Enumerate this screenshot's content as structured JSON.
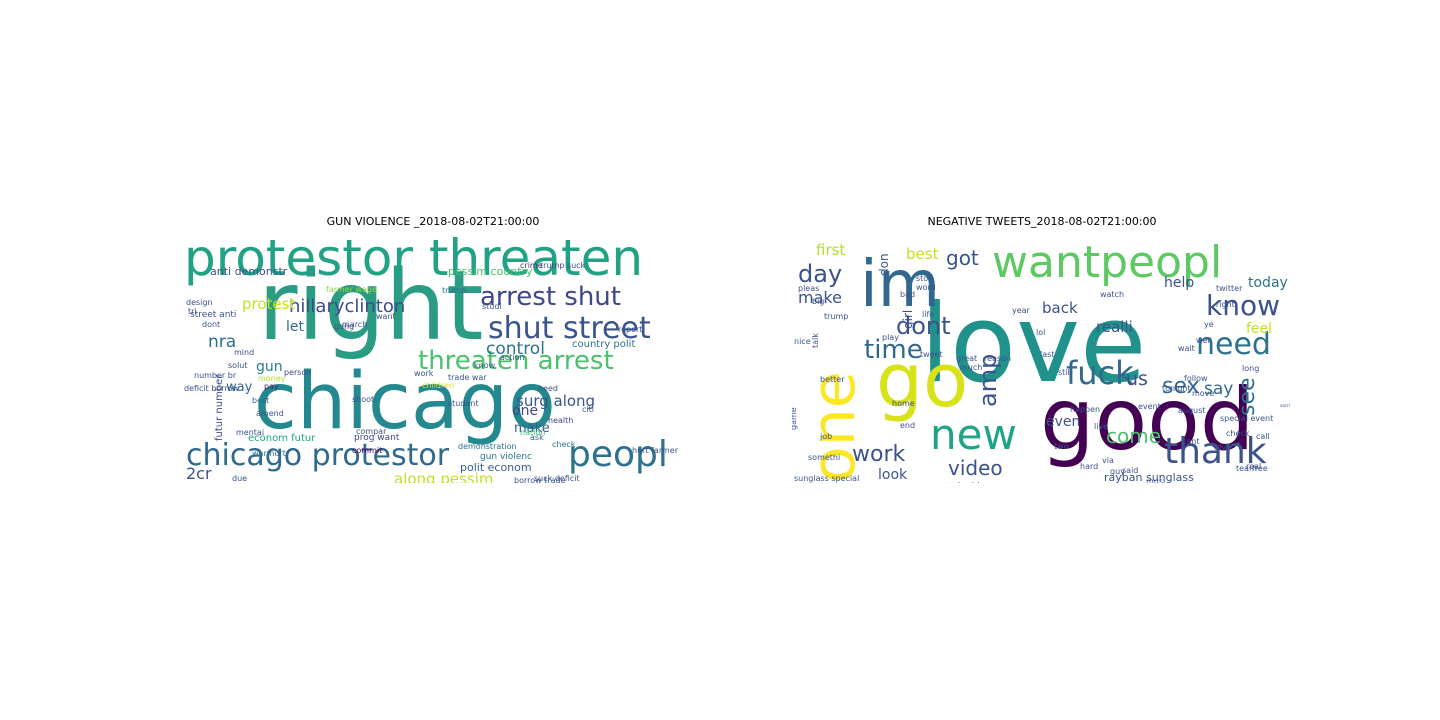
{
  "figure": {
    "panels": [
      {
        "title": "GUN VIOLENCE _2018-08-02T21:00:00",
        "words": [
          {
            "text": "right",
            "size": 96,
            "color": "#2a9c83"
          },
          {
            "text": "chicago",
            "size": 78,
            "color": "#23898e"
          },
          {
            "text": "protestor threaten",
            "size": 50,
            "color": "#22a284"
          },
          {
            "text": "peopl",
            "size": 36,
            "color": "#2c718e"
          },
          {
            "text": "chicago protestor",
            "size": 30,
            "color": "#31688e"
          },
          {
            "text": "shut street",
            "size": 30,
            "color": "#3a548c"
          },
          {
            "text": "arrest shut",
            "size": 26,
            "color": "#3f4788"
          },
          {
            "text": "threaten arrest",
            "size": 26,
            "color": "#4ac16d"
          },
          {
            "text": "hillaryclinton",
            "size": 18,
            "color": "#3e4a89"
          },
          {
            "text": "control",
            "size": 17,
            "color": "#2c728e"
          },
          {
            "text": "2cr",
            "size": 16,
            "color": "#3b528b"
          },
          {
            "text": "surg along",
            "size": 15,
            "color": "#3a548c"
          },
          {
            "text": "along pessim",
            "size": 15,
            "color": "#c2df23"
          },
          {
            "text": "protest",
            "size": 15,
            "color": "#c8e020"
          },
          {
            "text": "nra",
            "size": 17,
            "color": "#2d708e"
          },
          {
            "text": "gun",
            "size": 14,
            "color": "#287d8e"
          },
          {
            "text": "let",
            "size": 14,
            "color": "#2f6c8e"
          },
          {
            "text": "one",
            "size": 14,
            "color": "#3f4788"
          },
          {
            "text": "make",
            "size": 13,
            "color": "#355f8d"
          },
          {
            "text": "way",
            "size": 13,
            "color": "#31688e"
          },
          {
            "text": "anti demonstr",
            "size": 11,
            "color": "#3b528b"
          },
          {
            "text": "pessim country",
            "size": 11,
            "color": "#48c16e"
          },
          {
            "text": "polit econom",
            "size": 11,
            "color": "#355f8d"
          },
          {
            "text": "econom futur",
            "size": 10,
            "color": "#20a486"
          },
          {
            "text": "country polit",
            "size": 10,
            "color": "#2c728e"
          },
          {
            "text": "futur number",
            "size": 10,
            "color": "#3e4c8a"
          },
          {
            "text": "street anti",
            "size": 9,
            "color": "#3b528b"
          },
          {
            "text": "gun violenc",
            "size": 9,
            "color": "#2a788e"
          },
          {
            "text": "prog want",
            "size": 9,
            "color": "#3f4788"
          },
          {
            "text": "crime",
            "size": 8,
            "color": "#472d7b"
          },
          {
            "text": "trump suck",
            "size": 8,
            "color": "#3e4a89"
          },
          {
            "text": "farmer wage",
            "size": 8,
            "color": "#8fd744"
          },
          {
            "text": "money",
            "size": 8,
            "color": "#b5de2b"
          },
          {
            "text": "children",
            "size": 8,
            "color": "#dde318"
          },
          {
            "text": "student",
            "size": 8,
            "color": "#3b528b"
          },
          {
            "text": "demonstration",
            "size": 8,
            "color": "#2c728e"
          },
          {
            "text": "health",
            "size": 8,
            "color": "#3e4a89"
          },
          {
            "text": "citi",
            "size": 8,
            "color": "#355f8d"
          },
          {
            "text": "nation",
            "size": 8,
            "color": "#35b779"
          },
          {
            "text": "ask",
            "size": 8,
            "color": "#31688e"
          },
          {
            "text": "check",
            "size": 8,
            "color": "#2a788e"
          },
          {
            "text": "commit",
            "size": 8,
            "color": "#440154"
          },
          {
            "text": "war hurt",
            "size": 8,
            "color": "#2c728e"
          },
          {
            "text": "mind",
            "size": 8,
            "color": "#3e4a89"
          },
          {
            "text": "person",
            "size": 8,
            "color": "#3e4a89"
          },
          {
            "text": "shoot",
            "size": 8,
            "color": "#3b528b"
          },
          {
            "text": "best",
            "size": 8,
            "color": "#31688e"
          },
          {
            "text": "pay",
            "size": 8,
            "color": "#482475"
          },
          {
            "text": "march",
            "size": 8,
            "color": "#3b528b"
          },
          {
            "text": "gang",
            "size": 8,
            "color": "#3b528b"
          },
          {
            "text": "design",
            "size": 8,
            "color": "#3b528b"
          },
          {
            "text": "trump",
            "size": 8,
            "color": "#31688e"
          },
          {
            "text": "want",
            "size": 8,
            "color": "#3b528b"
          },
          {
            "text": "know",
            "size": 8,
            "color": "#3b528b"
          },
          {
            "text": "dont",
            "size": 8,
            "color": "#3b528b"
          },
          {
            "text": "need",
            "size": 8,
            "color": "#3b528b"
          },
          {
            "text": "suck deficit",
            "size": 8,
            "color": "#3b528b"
          },
          {
            "text": "borrow trade",
            "size": 8,
            "color": "#3b528b"
          },
          {
            "text": "trade war",
            "size": 8,
            "color": "#3b528b"
          },
          {
            "text": "report",
            "size": 8,
            "color": "#3b528b"
          },
          {
            "text": "deficit borrow",
            "size": 8,
            "color": "#3b528b"
          },
          {
            "text": "hurt farmer",
            "size": 8,
            "color": "#3b528b"
          },
          {
            "text": "mentai",
            "size": 8,
            "color": "#3b528b"
          },
          {
            "text": "compar",
            "size": 8,
            "color": "#3b528b"
          },
          {
            "text": "solut",
            "size": 8,
            "color": "#3b528b"
          },
          {
            "text": "action",
            "size": 8,
            "color": "#3b528b"
          },
          {
            "text": "amend",
            "size": 8,
            "color": "#3b528b"
          },
          {
            "text": "due",
            "size": 8,
            "color": "#3b528b"
          },
          {
            "text": "work",
            "size": 8,
            "color": "#3b528b"
          },
          {
            "text": "studi",
            "size": 8,
            "color": "#3b528b"
          },
          {
            "text": "number br",
            "size": 8,
            "color": "#3b528b"
          },
          {
            "text": "tri",
            "size": 8,
            "color": "#3b528b"
          }
        ]
      },
      {
        "title": "NEGATIVE TWEETS_2018-08-02T21:00:00",
        "words": [
          {
            "text": "love",
            "size": 108,
            "color": "#21918c"
          },
          {
            "text": "good",
            "size": 86,
            "color": "#440154"
          },
          {
            "text": "go",
            "size": 74,
            "color": "#d8e219"
          },
          {
            "text": "im",
            "size": 64,
            "color": "#31688e"
          },
          {
            "text": "one",
            "size": 60,
            "color": "#fde725"
          },
          {
            "text": "wantpeopl",
            "size": 44,
            "color": "#5ec962"
          },
          {
            "text": "new",
            "size": 42,
            "color": "#20a486"
          },
          {
            "text": "thank",
            "size": 36,
            "color": "#3b528b"
          },
          {
            "text": "fuck",
            "size": 32,
            "color": "#31688e"
          },
          {
            "text": "need",
            "size": 30,
            "color": "#2c728e"
          },
          {
            "text": "know",
            "size": 28,
            "color": "#3b528b"
          },
          {
            "text": "time",
            "size": 26,
            "color": "#31688e"
          },
          {
            "text": "dont",
            "size": 24,
            "color": "#3b528b"
          },
          {
            "text": "day",
            "size": 24,
            "color": "#3b528b"
          },
          {
            "text": "amp",
            "size": 24,
            "color": "#3b528b"
          },
          {
            "text": "sex",
            "size": 22,
            "color": "#31688e"
          },
          {
            "text": "see",
            "size": 22,
            "color": "#2c728e"
          },
          {
            "text": "work",
            "size": 22,
            "color": "#3b528b"
          },
          {
            "text": "come",
            "size": 20,
            "color": "#4ac16d"
          },
          {
            "text": "got",
            "size": 20,
            "color": "#3b528b"
          },
          {
            "text": "video",
            "size": 20,
            "color": "#3b528b"
          },
          {
            "text": "us",
            "size": 19,
            "color": "#3b528b"
          },
          {
            "text": "say",
            "size": 17,
            "color": "#31688e"
          },
          {
            "text": "make",
            "size": 16,
            "color": "#3b528b"
          },
          {
            "text": "first",
            "size": 15,
            "color": "#b5de2b"
          },
          {
            "text": "best",
            "size": 15,
            "color": "#c8e020"
          },
          {
            "text": "realli",
            "size": 15,
            "color": "#3b528b"
          },
          {
            "text": "back",
            "size": 15,
            "color": "#3b528b"
          },
          {
            "text": "help",
            "size": 14,
            "color": "#3b528b"
          },
          {
            "text": "today",
            "size": 14,
            "color": "#2c728e"
          },
          {
            "text": "feel",
            "size": 14,
            "color": "#c8e020"
          },
          {
            "text": "look",
            "size": 14,
            "color": "#3b528b"
          },
          {
            "text": "even",
            "size": 14,
            "color": "#3b528b"
          },
          {
            "text": "girl",
            "size": 12,
            "color": "#3b528b"
          },
          {
            "text": "don",
            "size": 12,
            "color": "#3b528b"
          },
          {
            "text": "rayban sunglass",
            "size": 11,
            "color": "#3b528b"
          },
          {
            "text": "youtub video",
            "size": 9,
            "color": "#3b528b"
          },
          {
            "text": "sunglass special",
            "size": 8,
            "color": "#3b528b"
          },
          {
            "text": "special event",
            "size": 8,
            "color": "#3b528b"
          },
          {
            "text": "event",
            "size": 8,
            "color": "#3b528b"
          },
          {
            "text": "august",
            "size": 8,
            "color": "#3b528b"
          },
          {
            "text": "tonight",
            "size": 8,
            "color": "#3b528b"
          },
          {
            "text": "twitter",
            "size": 8,
            "color": "#3b528b"
          },
          {
            "text": "watch",
            "size": 8,
            "color": "#3b528b"
          },
          {
            "text": "life",
            "size": 8,
            "color": "#3b528b"
          },
          {
            "text": "great",
            "size": 8,
            "color": "#3b528b"
          },
          {
            "text": "tweet",
            "size": 8,
            "color": "#3b528b"
          },
          {
            "text": "better",
            "size": 8,
            "color": "#3b528b"
          },
          {
            "text": "much",
            "size": 8,
            "color": "#3b528b"
          },
          {
            "text": "last",
            "size": 8,
            "color": "#3b528b"
          },
          {
            "text": "still",
            "size": 8,
            "color": "#3b528b"
          },
          {
            "text": "play",
            "size": 8,
            "color": "#3b528b"
          },
          {
            "text": "lol",
            "size": 8,
            "color": "#3b528b"
          },
          {
            "text": "hard",
            "size": 8,
            "color": "#3b528b"
          },
          {
            "text": "guy",
            "size": 8,
            "color": "#3b528b"
          },
          {
            "text": "give",
            "size": 8,
            "color": "#3b528b"
          },
          {
            "text": "call",
            "size": 8,
            "color": "#3b528b"
          },
          {
            "text": "check",
            "size": 8,
            "color": "#3b528b"
          },
          {
            "text": "long",
            "size": 8,
            "color": "#3b528b"
          },
          {
            "text": "wait",
            "size": 8,
            "color": "#3b528b"
          },
          {
            "text": "live",
            "size": 8,
            "color": "#3b528b"
          },
          {
            "text": "two",
            "size": 8,
            "color": "#3b528b"
          },
          {
            "text": "end",
            "size": 8,
            "color": "#3b528b"
          },
          {
            "text": "home",
            "size": 8,
            "color": "#3b528b"
          },
          {
            "text": "job",
            "size": 8,
            "color": "#3b528b"
          },
          {
            "text": "game",
            "size": 8,
            "color": "#3b528b"
          },
          {
            "text": "somethi",
            "size": 8,
            "color": "#3b528b"
          },
          {
            "text": "talk",
            "size": 8,
            "color": "#3b528b"
          },
          {
            "text": "stop",
            "size": 8,
            "color": "#3b528b"
          },
          {
            "text": "pleas",
            "size": 8,
            "color": "#3b528b"
          },
          {
            "text": "trump",
            "size": 8,
            "color": "#3b528b"
          },
          {
            "text": "big",
            "size": 8,
            "color": "#3b528b"
          },
          {
            "text": "right",
            "size": 8,
            "color": "#3b528b"
          },
          {
            "text": "word",
            "size": 8,
            "color": "#3b528b"
          },
          {
            "text": "year",
            "size": 8,
            "color": "#3b528b"
          },
          {
            "text": "bad",
            "size": 8,
            "color": "#3b528b"
          },
          {
            "text": "reason",
            "size": 8,
            "color": "#3b528b"
          },
          {
            "text": "happen",
            "size": 8,
            "color": "#3b528b"
          },
          {
            "text": "cant",
            "size": 8,
            "color": "#3b528b"
          },
          {
            "text": "free",
            "size": 8,
            "color": "#3b528b"
          },
          {
            "text": "team",
            "size": 8,
            "color": "#3b528b"
          },
          {
            "text": "real",
            "size": 8,
            "color": "#3b528b"
          },
          {
            "text": "said",
            "size": 8,
            "color": "#3b528b"
          },
          {
            "text": "tri",
            "size": 8,
            "color": "#3b528b"
          },
          {
            "text": "via",
            "size": 8,
            "color": "#3b528b"
          },
          {
            "text": "nice",
            "size": 8,
            "color": "#3b528b"
          },
          {
            "text": "musi",
            "size": 8,
            "color": "#3b528b"
          },
          {
            "text": "follow",
            "size": 8,
            "color": "#3b528b"
          },
          {
            "text": "move",
            "size": 8,
            "color": "#3b528b"
          },
          {
            "text": "sorri",
            "size": 8,
            "color": "#3b528b"
          },
          {
            "text": "ye",
            "size": 8,
            "color": "#3b528b"
          },
          {
            "text": "well",
            "size": 8,
            "color": "#3b528b"
          },
          {
            "text": "shit",
            "size": 8,
            "color": "#3b528b"
          }
        ]
      }
    ]
  }
}
